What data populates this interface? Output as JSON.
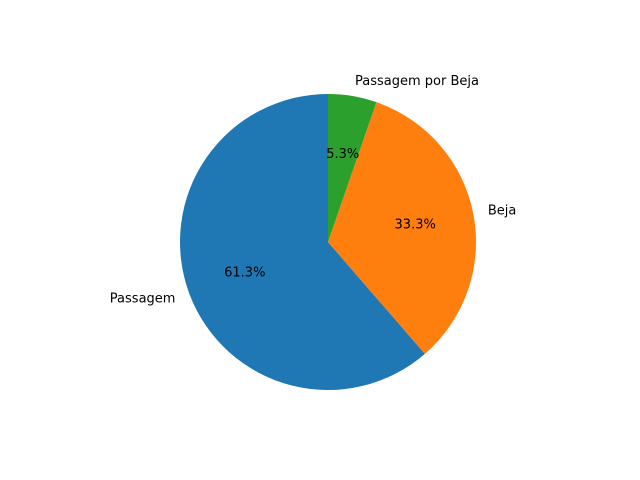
{
  "chart_data": {
    "type": "pie",
    "slices": [
      {
        "label": "Passagem",
        "value": 61.3,
        "pct_label": "61.3%",
        "color": "#1f77b4"
      },
      {
        "label": "Beja",
        "value": 33.3,
        "pct_label": "33.3%",
        "color": "#ff7f0e"
      },
      {
        "label": "Passagem por Beja",
        "value": 5.3,
        "pct_label": "5.3%",
        "color": "#2ca02c"
      }
    ],
    "start_angle_deg": 90,
    "direction": "counterclockwise"
  }
}
